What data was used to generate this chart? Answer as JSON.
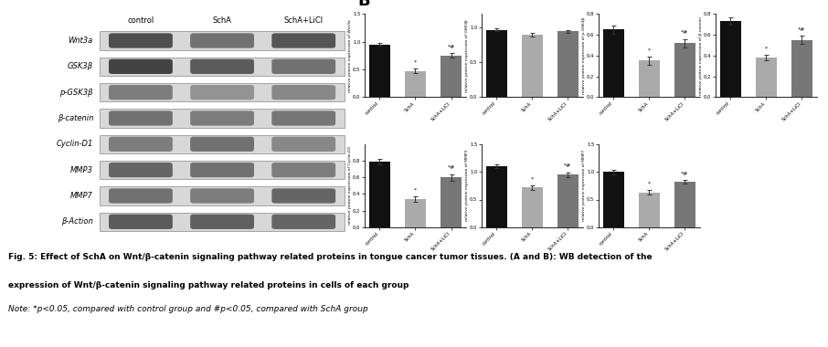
{
  "panel_A_labels": [
    "Wnt3a",
    "GSK3β",
    "p-GSK3β",
    "β-catenin",
    "Cyclin-D1",
    "MMP3",
    "MMP7",
    "β-Action"
  ],
  "panel_A_col_labels": [
    "control",
    "SchA",
    "SchA+LiCl"
  ],
  "charts": [
    {
      "ylabel": "relative protein expression of Wnt3a",
      "ylim": [
        0.0,
        1.5
      ],
      "yticks": [
        0.0,
        0.5,
        1.0,
        1.5
      ],
      "values": [
        0.95,
        0.47,
        0.75
      ],
      "errors": [
        0.03,
        0.04,
        0.04
      ],
      "sig_schA": "*",
      "sig_schALiCl": "*#"
    },
    {
      "ylabel": "relative protein expression of GSK3β",
      "ylim": [
        0.0,
        1.2
      ],
      "yticks": [
        0.0,
        0.5,
        1.0
      ],
      "values": [
        0.97,
        0.9,
        0.95
      ],
      "errors": [
        0.02,
        0.03,
        0.02
      ],
      "sig_schA": "",
      "sig_schALiCl": ""
    },
    {
      "ylabel": "relative protein expression of p-GSK3β",
      "ylim": [
        0.0,
        0.8
      ],
      "yticks": [
        0.0,
        0.2,
        0.4,
        0.6,
        0.8
      ],
      "values": [
        0.65,
        0.35,
        0.52
      ],
      "errors": [
        0.04,
        0.04,
        0.04
      ],
      "sig_schA": "*",
      "sig_schALiCl": "*#"
    },
    {
      "ylabel": "relative protein expression of β-catenin",
      "ylim": [
        0.0,
        0.8
      ],
      "yticks": [
        0.0,
        0.2,
        0.4,
        0.6,
        0.8
      ],
      "values": [
        0.73,
        0.38,
        0.55
      ],
      "errors": [
        0.035,
        0.03,
        0.04
      ],
      "sig_schA": "*",
      "sig_schALiCl": "*#"
    },
    {
      "ylabel": "relative protein expression of Cyclin-D1",
      "ylim": [
        0.0,
        1.0
      ],
      "yticks": [
        0.0,
        0.2,
        0.4,
        0.6,
        0.8
      ],
      "values": [
        0.79,
        0.34,
        0.6
      ],
      "errors": [
        0.03,
        0.035,
        0.04
      ],
      "sig_schA": "*",
      "sig_schALiCl": "*#"
    },
    {
      "ylabel": "relative protein expression of MMP3",
      "ylim": [
        0.0,
        1.5
      ],
      "yticks": [
        0.0,
        0.5,
        1.0,
        1.5
      ],
      "values": [
        1.1,
        0.72,
        0.95
      ],
      "errors": [
        0.04,
        0.04,
        0.04
      ],
      "sig_schA": "*",
      "sig_schALiCl": "*#"
    },
    {
      "ylabel": "relative protein expression of MMP7",
      "ylim": [
        0.0,
        1.5
      ],
      "yticks": [
        0.0,
        0.5,
        1.0,
        1.5
      ],
      "values": [
        1.0,
        0.63,
        0.82
      ],
      "errors": [
        0.04,
        0.035,
        0.03
      ],
      "sig_schA": "*",
      "sig_schALiCl": "*#"
    }
  ],
  "xtick_labels": [
    "control",
    "SchA",
    "SchA+LiCl"
  ],
  "bar_color_black": "#111111",
  "bar_color_lgray": "#aaaaaa",
  "bar_color_dgray": "#777777",
  "caption_bold": "Fig. 5:",
  "caption_line1": "Fig. 5: Effect of SchA on Wnt/β-catenin signaling pathway related proteins in tongue cancer tumor tissues. (A and B): WB detection of the",
  "caption_line2": "expression of Wnt/β-catenin signaling pathway related proteins in cells of each group",
  "caption_line3": "Note: *p<0.05, compared with control group and #p<0.05, compared with SchA group",
  "bg_color": "#ffffff"
}
